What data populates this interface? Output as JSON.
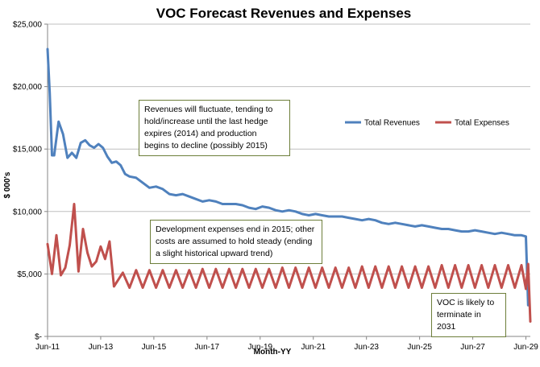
{
  "chart_data": {
    "type": "line",
    "title": "VOC Forecast Revenues and Expenses",
    "xlabel": "Month-YY",
    "ylabel": "$ 000's",
    "ylim": [
      0,
      25000
    ],
    "yticks": [
      0,
      5000,
      10000,
      15000,
      20000,
      25000
    ],
    "ytick_labels": [
      "$-",
      "$5,000",
      "$10,000",
      "$15,000",
      "$20,000",
      "$25,000"
    ],
    "xtick_labels": [
      "Jun-11",
      "Jun-13",
      "Jun-15",
      "Jun-17",
      "Jun-19",
      "Jun-21",
      "Jun-23",
      "Jun-25",
      "Jun-27",
      "Jun-29"
    ],
    "grid": "horizontal",
    "legend": "right",
    "series": [
      {
        "name": "Total Revenues",
        "color": "#4f81bd",
        "points": [
          [
            2011.417,
            23000
          ],
          [
            2011.5,
            19500
          ],
          [
            2011.583,
            14500
          ],
          [
            2011.667,
            14500
          ],
          [
            2011.833,
            17200
          ],
          [
            2012.0,
            16200
          ],
          [
            2012.167,
            14300
          ],
          [
            2012.333,
            14700
          ],
          [
            2012.5,
            14300
          ],
          [
            2012.667,
            15500
          ],
          [
            2012.833,
            15700
          ],
          [
            2013.0,
            15300
          ],
          [
            2013.167,
            15100
          ],
          [
            2013.333,
            15400
          ],
          [
            2013.5,
            15100
          ],
          [
            2013.667,
            14400
          ],
          [
            2013.833,
            13900
          ],
          [
            2014.0,
            14000
          ],
          [
            2014.167,
            13700
          ],
          [
            2014.333,
            13000
          ],
          [
            2014.5,
            12800
          ],
          [
            2014.75,
            12700
          ],
          [
            2015.0,
            12300
          ],
          [
            2015.25,
            11900
          ],
          [
            2015.5,
            12000
          ],
          [
            2015.75,
            11800
          ],
          [
            2016.0,
            11400
          ],
          [
            2016.25,
            11300
          ],
          [
            2016.5,
            11400
          ],
          [
            2016.75,
            11200
          ],
          [
            2017.0,
            11000
          ],
          [
            2017.25,
            10800
          ],
          [
            2017.5,
            10900
          ],
          [
            2017.75,
            10800
          ],
          [
            2018.0,
            10600
          ],
          [
            2018.25,
            10600
          ],
          [
            2018.5,
            10600
          ],
          [
            2018.75,
            10500
          ],
          [
            2019.0,
            10300
          ],
          [
            2019.25,
            10200
          ],
          [
            2019.5,
            10400
          ],
          [
            2019.75,
            10300
          ],
          [
            2020.0,
            10100
          ],
          [
            2020.25,
            10000
          ],
          [
            2020.5,
            10100
          ],
          [
            2020.75,
            10000
          ],
          [
            2021.0,
            9800
          ],
          [
            2021.25,
            9700
          ],
          [
            2021.5,
            9800
          ],
          [
            2021.75,
            9700
          ],
          [
            2022.0,
            9600
          ],
          [
            2022.25,
            9600
          ],
          [
            2022.5,
            9600
          ],
          [
            2022.75,
            9500
          ],
          [
            2023.0,
            9400
          ],
          [
            2023.25,
            9300
          ],
          [
            2023.5,
            9400
          ],
          [
            2023.75,
            9300
          ],
          [
            2024.0,
            9100
          ],
          [
            2024.25,
            9000
          ],
          [
            2024.5,
            9100
          ],
          [
            2024.75,
            9000
          ],
          [
            2025.0,
            8900
          ],
          [
            2025.25,
            8800
          ],
          [
            2025.5,
            8900
          ],
          [
            2025.75,
            8800
          ],
          [
            2026.0,
            8700
          ],
          [
            2026.25,
            8600
          ],
          [
            2026.5,
            8600
          ],
          [
            2026.75,
            8500
          ],
          [
            2027.0,
            8400
          ],
          [
            2027.25,
            8400
          ],
          [
            2027.5,
            8500
          ],
          [
            2027.75,
            8400
          ],
          [
            2028.0,
            8300
          ],
          [
            2028.25,
            8200
          ],
          [
            2028.5,
            8300
          ],
          [
            2028.75,
            8200
          ],
          [
            2029.0,
            8100
          ],
          [
            2029.25,
            8100
          ],
          [
            2029.417,
            8000
          ],
          [
            2029.5,
            2500
          ]
        ]
      },
      {
        "name": "Total Expenses",
        "color": "#c0504d",
        "points": [
          [
            2011.417,
            7400
          ],
          [
            2011.583,
            5000
          ],
          [
            2011.75,
            8100
          ],
          [
            2011.917,
            4900
          ],
          [
            2012.083,
            5500
          ],
          [
            2012.25,
            7300
          ],
          [
            2012.417,
            10600
          ],
          [
            2012.583,
            5200
          ],
          [
            2012.75,
            8600
          ],
          [
            2012.917,
            6700
          ],
          [
            2013.083,
            5600
          ],
          [
            2013.25,
            6000
          ],
          [
            2013.417,
            7200
          ],
          [
            2013.583,
            6200
          ],
          [
            2013.75,
            7600
          ],
          [
            2013.917,
            4000
          ],
          [
            2014.25,
            5100
          ],
          [
            2014.5,
            3900
          ],
          [
            2014.75,
            5300
          ],
          [
            2015.0,
            3900
          ],
          [
            2015.25,
            5300
          ],
          [
            2015.5,
            3900
          ],
          [
            2015.75,
            5300
          ],
          [
            2016.0,
            3900
          ],
          [
            2016.25,
            5300
          ],
          [
            2016.5,
            3900
          ],
          [
            2016.75,
            5300
          ],
          [
            2017.0,
            3900
          ],
          [
            2017.25,
            5400
          ],
          [
            2017.5,
            3900
          ],
          [
            2017.75,
            5400
          ],
          [
            2018.0,
            3900
          ],
          [
            2018.25,
            5400
          ],
          [
            2018.5,
            3900
          ],
          [
            2018.75,
            5400
          ],
          [
            2019.0,
            3900
          ],
          [
            2019.25,
            5400
          ],
          [
            2019.5,
            3900
          ],
          [
            2019.75,
            5400
          ],
          [
            2020.0,
            3900
          ],
          [
            2020.25,
            5500
          ],
          [
            2020.5,
            3900
          ],
          [
            2020.75,
            5500
          ],
          [
            2021.0,
            3900
          ],
          [
            2021.25,
            5500
          ],
          [
            2021.5,
            3900
          ],
          [
            2021.75,
            5500
          ],
          [
            2022.0,
            3900
          ],
          [
            2022.25,
            5500
          ],
          [
            2022.5,
            3900
          ],
          [
            2022.75,
            5500
          ],
          [
            2023.0,
            3900
          ],
          [
            2023.25,
            5600
          ],
          [
            2023.5,
            3900
          ],
          [
            2023.75,
            5600
          ],
          [
            2024.0,
            3900
          ],
          [
            2024.25,
            5600
          ],
          [
            2024.5,
            3900
          ],
          [
            2024.75,
            5600
          ],
          [
            2025.0,
            3900
          ],
          [
            2025.25,
            5600
          ],
          [
            2025.5,
            3900
          ],
          [
            2025.75,
            5600
          ],
          [
            2026.0,
            3900
          ],
          [
            2026.25,
            5700
          ],
          [
            2026.5,
            3900
          ],
          [
            2026.75,
            5700
          ],
          [
            2027.0,
            3900
          ],
          [
            2027.25,
            5700
          ],
          [
            2027.5,
            3900
          ],
          [
            2027.75,
            5700
          ],
          [
            2028.0,
            3900
          ],
          [
            2028.25,
            5700
          ],
          [
            2028.5,
            3900
          ],
          [
            2028.75,
            5700
          ],
          [
            2029.0,
            3900
          ],
          [
            2029.25,
            5700
          ],
          [
            2029.417,
            3800
          ],
          [
            2029.5,
            5800
          ],
          [
            2029.583,
            1200
          ]
        ]
      }
    ],
    "annotations": [
      {
        "lines": [
          "Revenues will fluctuate, tending to",
          "hold/increase until the last hedge",
          "expires (2014) and production",
          "begins to decline (possibly 2015)"
        ]
      },
      {
        "lines": [
          "Development expenses end in 2015; other",
          "costs are assumed to hold steady (ending",
          "a slight historical upward trend)"
        ]
      },
      {
        "lines": [
          "VOC is likely to",
          "terminate in 2031"
        ]
      }
    ]
  }
}
